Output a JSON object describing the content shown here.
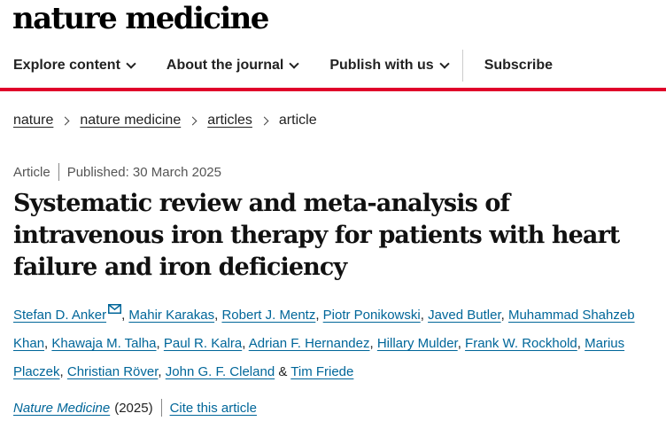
{
  "site": {
    "logo": "nature medicine"
  },
  "nav": {
    "items": [
      {
        "label": "Explore content",
        "has_dropdown": true
      },
      {
        "label": "About the journal",
        "has_dropdown": true
      },
      {
        "label": "Publish with us",
        "has_dropdown": true
      }
    ],
    "subscribe": "Subscribe"
  },
  "breadcrumb": {
    "items": [
      "nature",
      "nature medicine",
      "articles"
    ],
    "current": "article"
  },
  "article": {
    "type": "Article",
    "published": "Published: 30 March 2025",
    "title": "Systematic review and meta-analysis of intravenous iron therapy for patients with heart failure and iron deficiency",
    "authors": [
      "Stefan D. Anker",
      "Mahir Karakas",
      "Robert J. Mentz",
      "Piotr Ponikowski",
      "Javed Butler",
      "Muhammad Shahzeb Khan",
      "Khawaja M. Talha",
      "Paul R. Kalra",
      "Adrian F. Hernandez",
      "Hillary Mulder",
      "Frank W. Rockhold",
      "Marius Placzek",
      "Christian Röver",
      "John G. F. Cleland",
      "Tim Friede"
    ],
    "corresponding_icon": "mail-icon",
    "journal": "Nature Medicine",
    "year": "(2025)",
    "cite_label": "Cite this article"
  },
  "colors": {
    "accent_red": "#e0002a",
    "link_blue": "#006699"
  }
}
